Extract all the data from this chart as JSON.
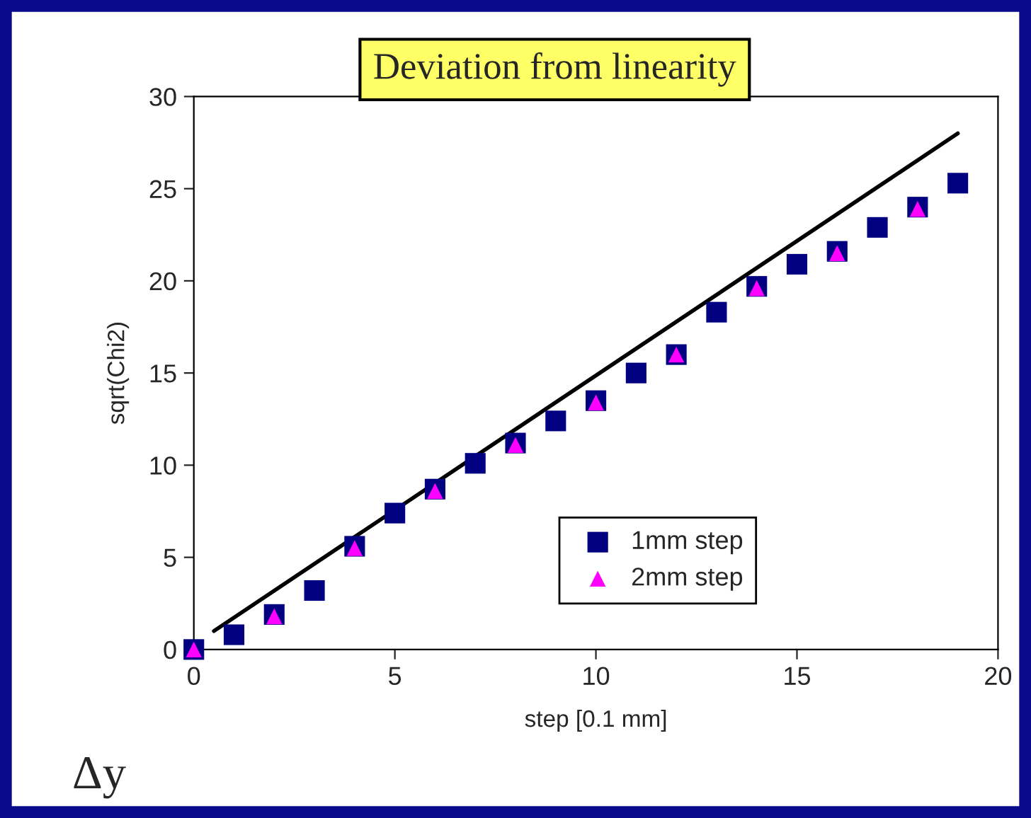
{
  "chart_data": {
    "type": "scatter",
    "title": "Deviation from linearity",
    "xlabel": "step [0.1 mm]",
    "ylabel": "sqrt(Chi2)",
    "annotations": [
      "Δy"
    ],
    "xlim": [
      0,
      20
    ],
    "xticks": [
      0,
      5,
      10,
      15,
      20
    ],
    "ylim": [
      0,
      30
    ],
    "yticks": [
      0,
      5,
      10,
      15,
      20,
      25,
      30
    ],
    "grid": false,
    "legend": "bottom right",
    "series": [
      {
        "name": "1mm step",
        "color": "#000080",
        "marker": "square",
        "x": [
          0,
          1,
          2,
          3,
          4,
          5,
          6,
          7,
          8,
          9,
          10,
          11,
          12,
          13,
          14,
          15,
          16,
          17,
          18,
          19
        ],
        "values": [
          0,
          0.8,
          1.9,
          3.2,
          5.6,
          7.4,
          8.7,
          10.1,
          11.2,
          12.4,
          13.5,
          15,
          16,
          18.3,
          19.7,
          20.9,
          21.6,
          22.9,
          24,
          25.3
        ]
      },
      {
        "name": "2mm step",
        "color": "#ff00ff",
        "marker": "triangle",
        "x": [
          0,
          2,
          4,
          6,
          8,
          10,
          12,
          14,
          16,
          18
        ],
        "values": [
          0,
          1.8,
          5.5,
          8.6,
          11.1,
          13.4,
          16,
          19.6,
          21.5,
          23.9
        ]
      },
      {
        "type": "line",
        "color": "#000000",
        "line_style": "solid",
        "x": [
          0.5,
          19
        ],
        "values": [
          1,
          28
        ]
      }
    ]
  }
}
